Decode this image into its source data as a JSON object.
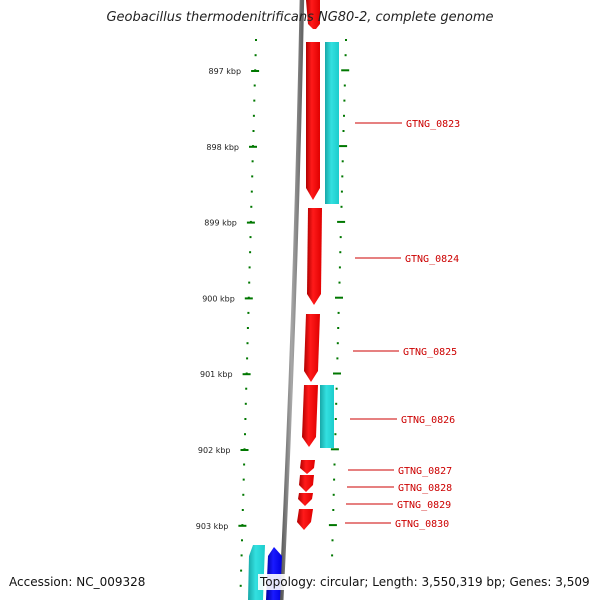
{
  "title": "Geobacillus thermodenitrificans NG80-2, complete genome",
  "ruler": {
    "ticks": [
      {
        "label": "897 kbp",
        "kbp": 897
      },
      {
        "label": "898 kbp",
        "kbp": 898
      },
      {
        "label": "899 kbp",
        "kbp": 899
      },
      {
        "label": "900 kbp",
        "kbp": 900
      },
      {
        "label": "901 kbp",
        "kbp": 901
      },
      {
        "label": "902 kbp",
        "kbp": 902
      },
      {
        "label": "903 kbp",
        "kbp": 903
      }
    ]
  },
  "genes": [
    {
      "label": "GTNG_0823"
    },
    {
      "label": "GTNG_0824"
    },
    {
      "label": "GTNG_0825"
    },
    {
      "label": "GTNG_0826"
    },
    {
      "label": "GTNG_0827"
    },
    {
      "label": "GTNG_0828"
    },
    {
      "label": "GTNG_0829"
    },
    {
      "label": "GTNG_0830"
    }
  ],
  "footer": {
    "accession": "Accession: NC_009328",
    "topology": "Topology: circular; Length: 3,550,319 bp; Genes: 3,509"
  },
  "colors": {
    "forward_cds": "#ff0000",
    "reverse_cds": "#1ccccc",
    "other_cds": "#0000ff",
    "backbone": "#808080",
    "ruler_tick": "#007700",
    "gene_label": "#cc0000"
  }
}
